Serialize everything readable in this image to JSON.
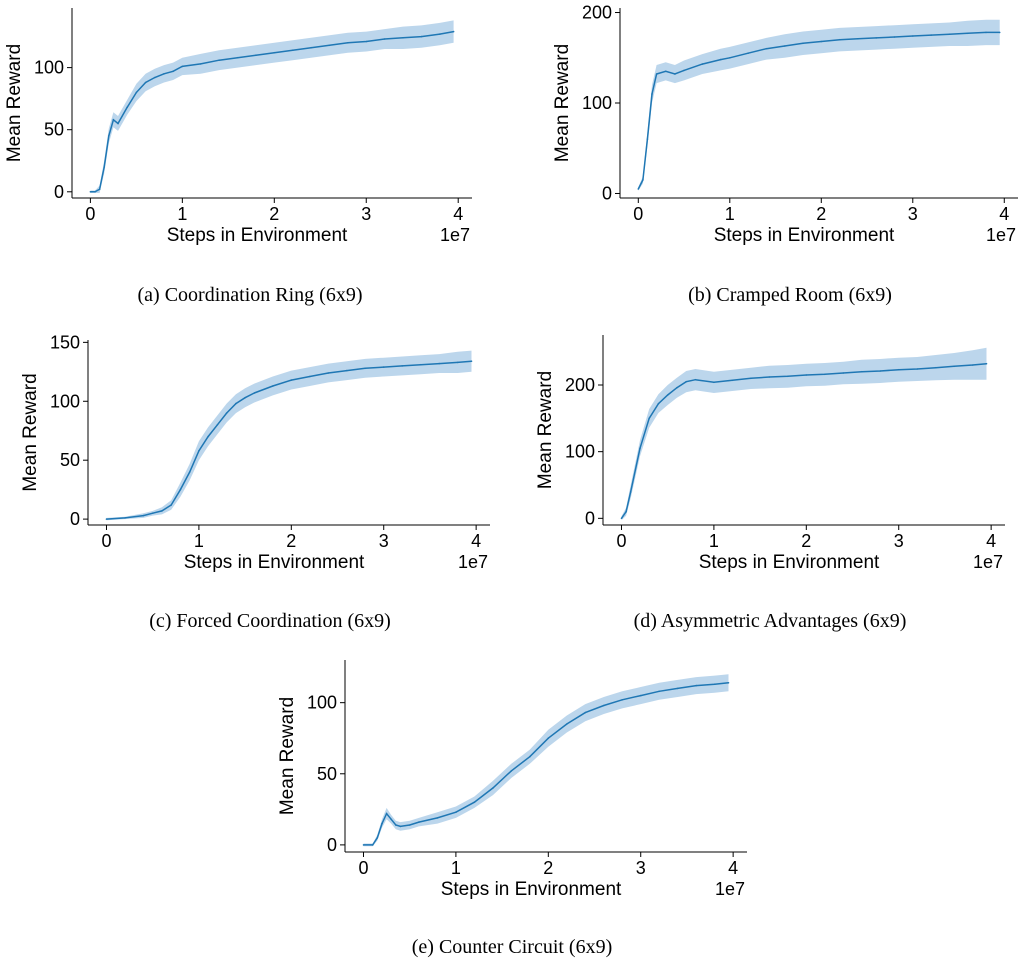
{
  "figure": {
    "colors": {
      "line": "#1f77b4",
      "band": "#a6c8e6",
      "axis": "#000000"
    }
  },
  "chart_data": [
    {
      "type": "line",
      "caption": "(a) Coordination Ring (6x9)",
      "xlabel": "Steps in Environment",
      "ylabel": "Mean Reward",
      "x_scale_label": "1e7",
      "xlim": [
        -0.2,
        4.15
      ],
      "ylim": [
        -5,
        148
      ],
      "xticks": [
        0,
        1,
        2,
        3,
        4
      ],
      "yticks": [
        0,
        50,
        100
      ],
      "x": [
        0,
        0.05,
        0.1,
        0.15,
        0.2,
        0.25,
        0.3,
        0.4,
        0.5,
        0.6,
        0.7,
        0.8,
        0.9,
        1.0,
        1.2,
        1.4,
        1.6,
        1.8,
        2.0,
        2.2,
        2.4,
        2.6,
        2.8,
        3.0,
        3.2,
        3.4,
        3.6,
        3.8,
        3.95
      ],
      "series": [
        {
          "values": [
            0,
            0,
            2,
            20,
            45,
            58,
            55,
            68,
            80,
            88,
            92,
            95,
            97,
            101,
            103,
            106,
            108,
            110,
            112,
            114,
            116,
            118,
            120,
            121,
            123,
            124,
            125,
            127,
            129
          ],
          "band_halfwidth": [
            1,
            1,
            3,
            5,
            6,
            6,
            6,
            6,
            7,
            7,
            7,
            7,
            7,
            7,
            8,
            8,
            8,
            8,
            8,
            8,
            8,
            8,
            8,
            8,
            8,
            9,
            9,
            9,
            9
          ]
        }
      ]
    },
    {
      "type": "line",
      "caption": "(b) Cramped Room (6x9)",
      "xlabel": "Steps in Environment",
      "ylabel": "Mean Reward",
      "x_scale_label": "1e7",
      "xlim": [
        -0.2,
        4.15
      ],
      "ylim": [
        -5,
        205
      ],
      "xticks": [
        0,
        1,
        2,
        3,
        4
      ],
      "yticks": [
        0,
        100,
        200
      ],
      "x": [
        0,
        0.05,
        0.1,
        0.15,
        0.2,
        0.3,
        0.4,
        0.5,
        0.7,
        0.9,
        1.0,
        1.2,
        1.4,
        1.6,
        1.8,
        2.0,
        2.2,
        2.4,
        2.6,
        2.8,
        3.0,
        3.2,
        3.4,
        3.6,
        3.8,
        3.95
      ],
      "series": [
        {
          "values": [
            5,
            15,
            60,
            110,
            132,
            135,
            132,
            136,
            143,
            148,
            150,
            155,
            160,
            163,
            166,
            168,
            170,
            171,
            172,
            173,
            174,
            175,
            176,
            177,
            178,
            178
          ],
          "band_halfwidth": [
            2,
            4,
            8,
            10,
            10,
            10,
            10,
            11,
            11,
            12,
            12,
            12,
            12,
            13,
            13,
            13,
            13,
            13,
            13,
            13,
            13,
            13,
            13,
            14,
            14,
            14
          ]
        }
      ]
    },
    {
      "type": "line",
      "caption": "(c) Forced Coordination (6x9)",
      "xlabel": "Steps in Environment",
      "ylabel": "Mean Reward",
      "x_scale_label": "1e7",
      "xlim": [
        -0.2,
        4.15
      ],
      "ylim": [
        -5,
        152
      ],
      "xticks": [
        0,
        1,
        2,
        3,
        4
      ],
      "yticks": [
        0,
        50,
        100,
        150
      ],
      "x": [
        0,
        0.2,
        0.4,
        0.5,
        0.6,
        0.7,
        0.8,
        0.9,
        1.0,
        1.1,
        1.2,
        1.3,
        1.4,
        1.5,
        1.6,
        1.8,
        2.0,
        2.2,
        2.4,
        2.6,
        2.8,
        3.0,
        3.2,
        3.4,
        3.6,
        3.8,
        3.95
      ],
      "series": [
        {
          "values": [
            0,
            1,
            3,
            5,
            7,
            12,
            25,
            40,
            58,
            70,
            80,
            90,
            98,
            103,
            107,
            113,
            118,
            121,
            124,
            126,
            128,
            129,
            130,
            131,
            132,
            133,
            134
          ],
          "band_halfwidth": [
            1,
            1,
            2,
            2,
            3,
            4,
            6,
            7,
            8,
            8,
            8,
            8,
            8,
            8,
            8,
            8,
            8,
            8,
            8,
            8,
            8,
            8,
            8,
            8,
            8,
            9,
            9
          ]
        }
      ]
    },
    {
      "type": "line",
      "caption": "(d) Asymmetric Advantages (6x9)",
      "xlabel": "Steps in Environment",
      "ylabel": "Mean Reward",
      "x_scale_label": "1e7",
      "xlim": [
        -0.2,
        4.15
      ],
      "ylim": [
        -10,
        275
      ],
      "xticks": [
        0,
        1,
        2,
        3,
        4
      ],
      "yticks": [
        0,
        100,
        200
      ],
      "x": [
        0,
        0.05,
        0.1,
        0.2,
        0.3,
        0.4,
        0.5,
        0.6,
        0.7,
        0.8,
        1.0,
        1.2,
        1.4,
        1.6,
        1.8,
        2.0,
        2.2,
        2.4,
        2.6,
        2.8,
        3.0,
        3.2,
        3.4,
        3.6,
        3.8,
        3.95
      ],
      "series": [
        {
          "values": [
            0,
            10,
            40,
            105,
            150,
            172,
            185,
            196,
            205,
            208,
            204,
            207,
            210,
            212,
            213,
            215,
            216,
            218,
            220,
            221,
            223,
            224,
            226,
            228,
            230,
            232
          ],
          "band_halfwidth": [
            3,
            6,
            10,
            12,
            14,
            14,
            15,
            15,
            16,
            16,
            16,
            16,
            16,
            17,
            17,
            17,
            17,
            17,
            18,
            18,
            18,
            18,
            19,
            20,
            22,
            24
          ]
        }
      ]
    },
    {
      "type": "line",
      "caption": "(e) Counter Circuit (6x9)",
      "xlabel": "Steps in Environment",
      "ylabel": "Mean Reward",
      "x_scale_label": "1e7",
      "xlim": [
        -0.2,
        4.15
      ],
      "ylim": [
        -5,
        130
      ],
      "xticks": [
        0,
        1,
        2,
        3,
        4
      ],
      "yticks": [
        0,
        50,
        100
      ],
      "x": [
        0,
        0.1,
        0.15,
        0.2,
        0.25,
        0.3,
        0.35,
        0.4,
        0.5,
        0.6,
        0.8,
        1.0,
        1.2,
        1.4,
        1.6,
        1.8,
        2.0,
        2.2,
        2.4,
        2.6,
        2.8,
        3.0,
        3.2,
        3.4,
        3.6,
        3.8,
        3.95
      ],
      "series": [
        {
          "values": [
            0,
            0,
            5,
            15,
            22,
            18,
            14,
            13,
            14,
            16,
            19,
            23,
            30,
            40,
            52,
            62,
            75,
            85,
            93,
            98,
            102,
            105,
            108,
            110,
            112,
            113,
            114
          ],
          "band_halfwidth": [
            1,
            1,
            2,
            3,
            4,
            3,
            3,
            3,
            3,
            3,
            4,
            4,
            4,
            5,
            5,
            5,
            6,
            6,
            6,
            6,
            6,
            6,
            6,
            6,
            6,
            6,
            6
          ]
        }
      ]
    }
  ]
}
